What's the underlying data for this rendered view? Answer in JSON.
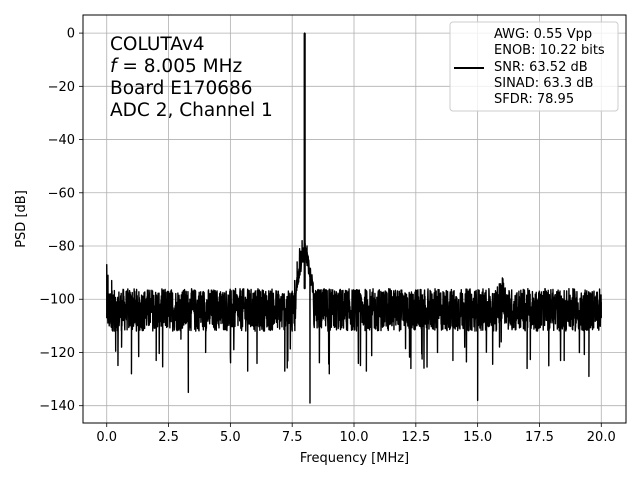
{
  "chart_data": {
    "type": "line",
    "title": "",
    "xlabel": "Frequency [MHz]",
    "ylabel": "PSD [dB]",
    "xlim": [
      -0.96,
      21.0
    ],
    "ylim": [
      -146.5,
      6.8
    ],
    "xticks": [
      0.0,
      2.5,
      5.0,
      7.5,
      10.0,
      12.5,
      15.0,
      17.5,
      20.0
    ],
    "xtick_labels": [
      "0.0",
      "2.5",
      "5.0",
      "7.5",
      "10.0",
      "12.5",
      "15.0",
      "17.5",
      "20.0"
    ],
    "yticks": [
      0,
      -20,
      -40,
      -60,
      -80,
      -100,
      -120,
      -140
    ],
    "ytick_labels": [
      "0",
      "−20",
      "−40",
      "−60",
      "−80",
      "−100",
      "−120",
      "−140"
    ],
    "grid": true,
    "legend_position": "top-right",
    "annotation_lines": [
      "COLUTAv4",
      "f = 8.005 MHz",
      "Board E170686",
      "ADC 2, Channel 1"
    ],
    "series": [
      {
        "color": "#000000",
        "noise_floor_db": -104,
        "points": [
          [
            0.0,
            -87
          ],
          [
            0.02,
            -102
          ],
          [
            0.05,
            -91
          ],
          [
            0.1,
            -110
          ],
          [
            0.2,
            -93
          ],
          [
            0.3,
            -112
          ],
          [
            0.4,
            -101
          ],
          [
            0.6,
            -118
          ],
          [
            0.8,
            -97
          ],
          [
            1.0,
            -128
          ],
          [
            1.2,
            -99
          ],
          [
            2.0,
            -123
          ],
          [
            3.0,
            -115
          ],
          [
            3.3,
            -135
          ],
          [
            3.6,
            -112
          ],
          [
            4.0,
            -120
          ],
          [
            5.0,
            -121
          ],
          [
            5.7,
            -127
          ],
          [
            6.0,
            -112
          ],
          [
            7.2,
            -127
          ],
          [
            7.5,
            -97
          ],
          [
            7.6,
            -93
          ],
          [
            7.7,
            -86
          ],
          [
            7.8,
            -81
          ],
          [
            7.85,
            -82
          ],
          [
            7.9,
            -78
          ],
          [
            7.95,
            -86
          ],
          [
            8.0,
            -96
          ],
          [
            8.005,
            0
          ],
          [
            8.01,
            -96
          ],
          [
            8.05,
            -85
          ],
          [
            8.1,
            -80
          ],
          [
            8.15,
            -84
          ],
          [
            8.2,
            -90
          ],
          [
            8.22,
            -139
          ],
          [
            8.25,
            -92
          ],
          [
            8.35,
            -96
          ],
          [
            8.5,
            -99
          ],
          [
            9.0,
            -128
          ],
          [
            9.5,
            -100
          ],
          [
            10.5,
            -127
          ],
          [
            12.3,
            -126
          ],
          [
            13.0,
            -101
          ],
          [
            14.0,
            -123
          ],
          [
            15.0,
            -138
          ],
          [
            15.5,
            -99
          ],
          [
            16.0,
            -92
          ],
          [
            16.1,
            -99
          ],
          [
            17.0,
            -126
          ],
          [
            17.5,
            -102
          ],
          [
            18.5,
            -123
          ],
          [
            19.5,
            -129
          ],
          [
            20.0,
            -101
          ]
        ]
      }
    ],
    "legend": {
      "lines": [
        "AWG: 0.55 Vpp",
        "ENOB: 10.22 bits",
        "SNR: 63.52 dB",
        "SINAD: 63.3 dB",
        "SFDR: 78.95"
      ]
    }
  }
}
